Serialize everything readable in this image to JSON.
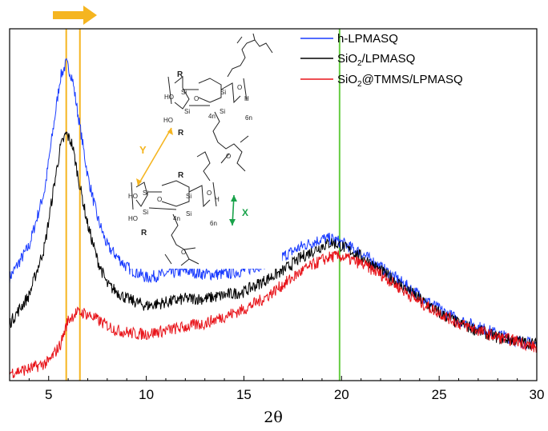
{
  "chart_data": {
    "type": "line",
    "xlabel": "2θ",
    "ylabel": "",
    "xlim": [
      3,
      30
    ],
    "xticks": [
      5,
      10,
      15,
      20,
      25,
      30
    ],
    "xtick_labels": [
      "5",
      "10",
      "15",
      "20",
      "25",
      "30"
    ],
    "grid": false,
    "legend_position": "top-right",
    "series": [
      {
        "name": "h-LPMASQ",
        "color": "#1a3cff",
        "x": [
          3,
          4,
          4.8,
          5.3,
          5.6,
          5.9,
          6.2,
          6.6,
          7.0,
          7.5,
          8.0,
          9.0,
          10,
          11,
          12,
          13,
          14,
          15,
          16,
          17,
          18,
          19,
          19.5,
          20,
          21,
          22,
          23,
          24,
          25,
          26,
          27,
          28,
          29,
          30
        ],
        "y": [
          0.27,
          0.36,
          0.52,
          0.72,
          0.84,
          0.88,
          0.84,
          0.7,
          0.56,
          0.44,
          0.36,
          0.3,
          0.27,
          0.28,
          0.29,
          0.28,
          0.28,
          0.29,
          0.31,
          0.33,
          0.36,
          0.38,
          0.38,
          0.37,
          0.34,
          0.3,
          0.26,
          0.22,
          0.18,
          0.15,
          0.13,
          0.11,
          0.09,
          0.08
        ]
      },
      {
        "name": "SiO2/LPMASQ",
        "color": "#000000",
        "x": [
          3,
          4,
          4.8,
          5.3,
          5.6,
          5.9,
          6.2,
          6.6,
          7.0,
          7.5,
          8.0,
          9.0,
          10,
          11,
          12,
          13,
          14,
          15,
          16,
          17,
          18,
          19,
          19.5,
          20,
          21,
          22,
          23,
          24,
          25,
          26,
          27,
          28,
          29,
          30
        ],
        "y": [
          0.14,
          0.22,
          0.36,
          0.54,
          0.64,
          0.68,
          0.65,
          0.53,
          0.42,
          0.32,
          0.25,
          0.21,
          0.19,
          0.2,
          0.21,
          0.21,
          0.22,
          0.23,
          0.26,
          0.29,
          0.33,
          0.36,
          0.37,
          0.36,
          0.33,
          0.29,
          0.25,
          0.21,
          0.17,
          0.14,
          0.12,
          0.1,
          0.09,
          0.08
        ]
      },
      {
        "name": "SiO2@TMMS/LPMASQ",
        "color": "#e8141a",
        "x": [
          3,
          4,
          5,
          5.6,
          6.0,
          6.4,
          6.8,
          7.2,
          7.8,
          8.5,
          9.5,
          10,
          11,
          12,
          13,
          14,
          15,
          16,
          17,
          18,
          19,
          19.5,
          20,
          21,
          22,
          23,
          24,
          25,
          26,
          27,
          28,
          29,
          30
        ],
        "y": [
          0.0,
          0.01,
          0.03,
          0.08,
          0.15,
          0.17,
          0.17,
          0.16,
          0.14,
          0.12,
          0.11,
          0.11,
          0.12,
          0.13,
          0.14,
          0.16,
          0.18,
          0.21,
          0.25,
          0.29,
          0.32,
          0.33,
          0.33,
          0.31,
          0.28,
          0.24,
          0.2,
          0.17,
          0.14,
          0.12,
          0.1,
          0.09,
          0.07
        ]
      }
    ],
    "reference_lines": [
      {
        "x": 5.9,
        "color": "#f5b520"
      },
      {
        "x": 6.6,
        "color": "#f5b520"
      },
      {
        "x": 19.9,
        "color": "#66cc44"
      }
    ]
  },
  "legend": {
    "items": [
      {
        "name": "h-LPMASQ",
        "color": "#1a3cff"
      },
      {
        "name": "SiO2/LPMASQ",
        "base": "SiO",
        "sub": "2",
        "rest": "/LPMASQ",
        "color": "#000000"
      },
      {
        "name": "SiO2@TMMS/LPMASQ",
        "base": "SiO",
        "sub": "2",
        "rest": "@TMMS/LPMASQ",
        "color": "#e8141a"
      }
    ]
  },
  "annotations": {
    "shift_arrow_color": "#f5b520",
    "y_label": "Y",
    "y_color": "#f5b520",
    "x_label": "X",
    "x_color": "#19a24a"
  },
  "structure": {
    "r": "R",
    "ho": "HO",
    "si": "Si",
    "o": "O",
    "h": "H",
    "n4": "4n",
    "n6": "6n"
  }
}
